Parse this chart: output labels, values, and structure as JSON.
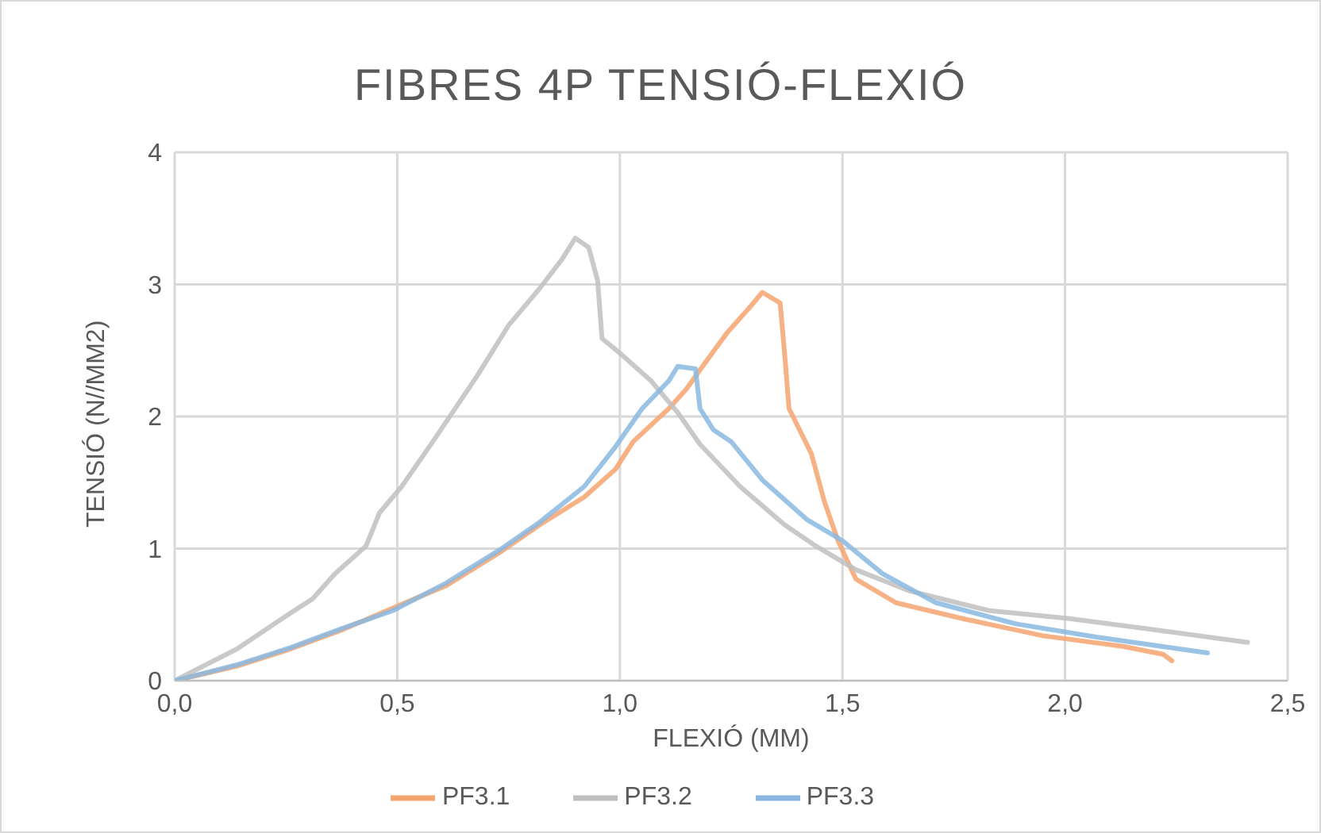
{
  "chart_data": {
    "type": "line",
    "title": "FIBRES 4P TENSIÓ-FLEXIÓ",
    "xlabel": "FLEXIÓ (MM)",
    "ylabel": "TENSIÓ (N//MM2)",
    "xlim": [
      0,
      2.5
    ],
    "xticks": [
      {
        "value": 0,
        "label": "0,0"
      },
      {
        "value": 0.5,
        "label": "0,5"
      },
      {
        "value": 1,
        "label": "1,0"
      },
      {
        "value": 1.5,
        "label": "1,5"
      },
      {
        "value": 2,
        "label": "2,0"
      },
      {
        "value": 2.5,
        "label": "2,5"
      }
    ],
    "ylim": [
      0,
      4
    ],
    "yticks": [
      0,
      1,
      2,
      3,
      4
    ],
    "grid": true,
    "legend": "bottom",
    "marker": "none",
    "line_style": "solid",
    "series": [
      {
        "name": "PF3.1",
        "color": "#f4a46e",
        "x": [
          0,
          0.14,
          0.26,
          0.38,
          0.49,
          0.61,
          0.73,
          0.82,
          0.92,
          0.99,
          1.03,
          1.11,
          1.15,
          1.19,
          1.24,
          1.29,
          1.32,
          1.36,
          1.37,
          1.38,
          1.43,
          1.46,
          1.49,
          1.53,
          1.62,
          1.77,
          1.95,
          2.13,
          2.22,
          2.24
        ],
        "values": [
          0,
          0.11,
          0.24,
          0.39,
          0.55,
          0.72,
          0.97,
          1.18,
          1.39,
          1.6,
          1.81,
          2.06,
          2.21,
          2.4,
          2.63,
          2.82,
          2.94,
          2.86,
          2.48,
          2.06,
          1.72,
          1.35,
          1.06,
          0.77,
          0.59,
          0.47,
          0.34,
          0.26,
          0.2,
          0.15
        ]
      },
      {
        "name": "PF3.2",
        "color": "#bfbfbf",
        "x": [
          0,
          0.14,
          0.25,
          0.31,
          0.36,
          0.43,
          0.46,
          0.51,
          0.58,
          0.68,
          0.75,
          0.82,
          0.87,
          0.9,
          0.93,
          0.95,
          0.96,
          1.0,
          1.07,
          1.13,
          1.18,
          1.27,
          1.37,
          1.44,
          1.53,
          1.65,
          1.83,
          2.01,
          2.19,
          2.41
        ],
        "values": [
          0,
          0.24,
          0.49,
          0.62,
          0.81,
          1.02,
          1.27,
          1.47,
          1.81,
          2.31,
          2.69,
          2.97,
          3.19,
          3.35,
          3.28,
          3.03,
          2.59,
          2.48,
          2.27,
          2.03,
          1.79,
          1.47,
          1.18,
          1.02,
          0.84,
          0.68,
          0.53,
          0.47,
          0.39,
          0.29
        ]
      },
      {
        "name": "PF3.3",
        "color": "#8ab8e0",
        "x": [
          0,
          0.14,
          0.26,
          0.38,
          0.49,
          0.61,
          0.73,
          0.82,
          0.92,
          0.99,
          1.05,
          1.11,
          1.13,
          1.17,
          1.18,
          1.21,
          1.25,
          1.32,
          1.42,
          1.5,
          1.59,
          1.71,
          1.89,
          2.07,
          2.32
        ],
        "values": [
          0,
          0.12,
          0.25,
          0.4,
          0.53,
          0.74,
          0.99,
          1.2,
          1.47,
          1.77,
          2.06,
          2.27,
          2.38,
          2.36,
          2.06,
          1.9,
          1.81,
          1.52,
          1.22,
          1.06,
          0.81,
          0.59,
          0.43,
          0.33,
          0.21
        ]
      }
    ]
  }
}
